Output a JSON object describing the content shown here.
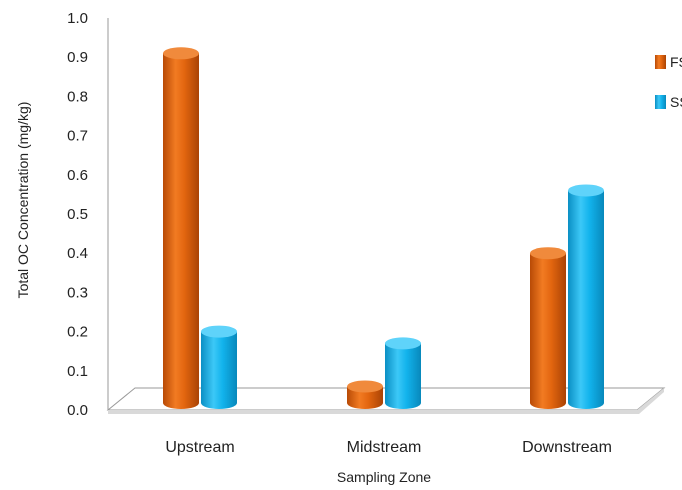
{
  "chart_data": {
    "type": "bar",
    "style": "3d-cylinder",
    "title": "",
    "xlabel": "Sampling Zone",
    "ylabel": "Total OC Concentration (mg/kg)",
    "categories": [
      "Upstream",
      "Midstream",
      "Downstream"
    ],
    "series": [
      {
        "name": "FS",
        "values": [
          0.91,
          0.06,
          0.4
        ],
        "color": "#e2650f"
      },
      {
        "name": "SS",
        "values": [
          0.2,
          0.17,
          0.56
        ],
        "color": "#12b3ec"
      }
    ],
    "ylim": [
      0.0,
      1.0
    ],
    "yticks": [
      "0.0",
      "0.1",
      "0.2",
      "0.3",
      "0.4",
      "0.5",
      "0.6",
      "0.7",
      "0.8",
      "0.9",
      "1.0"
    ],
    "grid": false,
    "legend_position": "right"
  }
}
